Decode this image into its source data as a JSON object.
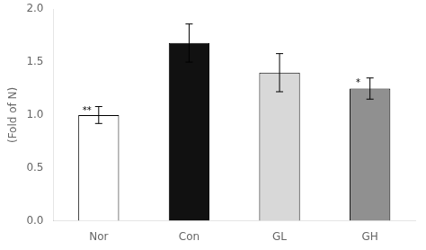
{
  "chart_data": {
    "type": "bar",
    "categories": [
      "Nor",
      "Con",
      "GL",
      "GH"
    ],
    "values": [
      1.0,
      1.68,
      1.4,
      1.25
    ],
    "errors": [
      0.08,
      0.18,
      0.18,
      0.1
    ],
    "colors": [
      "#ffffff",
      "#111111",
      "#d8d8d8",
      "#909090"
    ],
    "ylabel": "(Fold of N)",
    "ylim": [
      0.0,
      2.0
    ],
    "yticks": [
      {
        "value": 0.0,
        "label": "0.0"
      },
      0.5,
      {
        "value": 1.0,
        "label": "1.0"
      },
      1.5,
      {
        "value": 2.0,
        "label": "2.0"
      }
    ],
    "annotations": [
      {
        "text": "**",
        "category": "Nor",
        "y": 1.04
      },
      {
        "text": "*",
        "category": "GH",
        "y": 1.3
      }
    ],
    "grid": false
  }
}
